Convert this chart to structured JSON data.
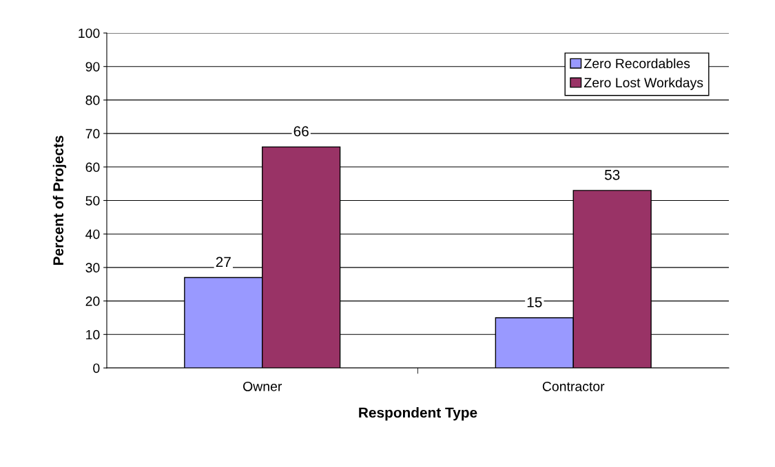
{
  "chart_data": {
    "type": "bar",
    "xlabel": "Respondent Type",
    "ylabel": "Percent of Projects",
    "categories": [
      "Owner",
      "Contractor"
    ],
    "series": [
      {
        "name": "Zero Recordables",
        "color": "#9999ff",
        "values": [
          27,
          15
        ]
      },
      {
        "name": "Zero Lost Workdays",
        "color": "#993366",
        "values": [
          66,
          53
        ]
      }
    ],
    "ylim": [
      0,
      100
    ],
    "yticks": [
      0,
      10,
      20,
      30,
      40,
      50,
      60,
      70,
      80,
      90,
      100
    ],
    "grid": "y",
    "legend": "top right",
    "data_labels": true
  }
}
